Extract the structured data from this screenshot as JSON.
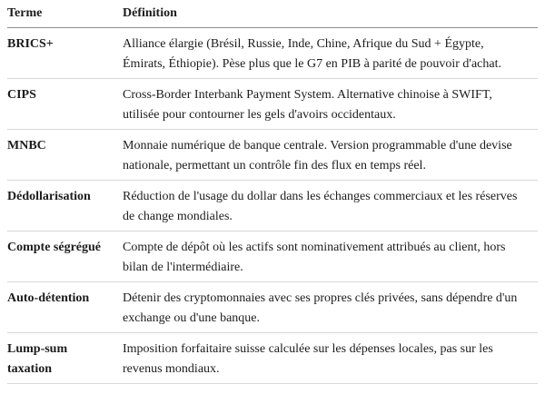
{
  "table": {
    "headers": [
      "Terme",
      "Définition"
    ],
    "rows": [
      {
        "term": "BRICS+",
        "definition": "Alliance élargie (Brésil, Russie, Inde, Chine, Afrique du Sud + Égypte, Émirats, Éthiopie). Pèse plus que le G7 en PIB à parité de pouvoir d'achat."
      },
      {
        "term": "CIPS",
        "definition": "Cross-Border Interbank Payment System. Alternative chinoise à SWIFT, utilisée pour contourner les gels d'avoirs occidentaux."
      },
      {
        "term": "MNBC",
        "definition": "Monnaie numérique de banque centrale. Version programmable d'une devise nationale, permettant un contrôle fin des flux en temps réel."
      },
      {
        "term": "Dédollarisation",
        "definition": "Réduction de l'usage du dollar dans les échanges commerciaux et les réserves de change mondiales."
      },
      {
        "term": "Compte ségrégué",
        "definition": "Compte de dépôt où les actifs sont nominativement attribués au client, hors bilan de l'intermédiaire."
      },
      {
        "term": "Auto-détention",
        "definition": "Détenir des cryptomonnaies avec ses propres clés privées, sans dépendre d'un exchange ou d'une banque."
      },
      {
        "term": "Lump-sum taxation",
        "definition": "Imposition forfaitaire suisse calculée sur les dépenses locales, pas sur les revenus mondiaux."
      }
    ],
    "colors": {
      "text": "#1c1c1c",
      "header_rule": "#8c8c8c",
      "row_rule": "#d8d8d8",
      "background": "#ffffff"
    }
  }
}
